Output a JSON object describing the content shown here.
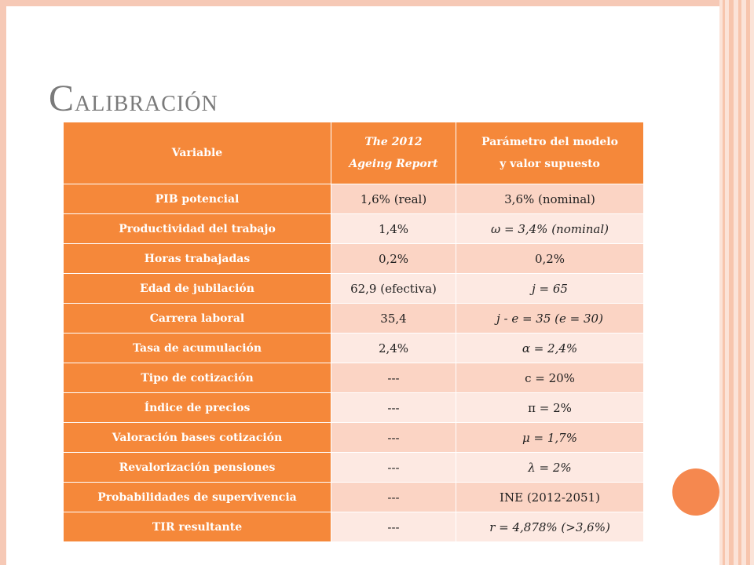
{
  "title": {
    "first": "C",
    "rest": "alibración"
  },
  "table": {
    "headers": {
      "variable": "Variable",
      "report_line1": "The 2012",
      "report_line2": "Ageing Report",
      "param_line1": "Parámetro del modelo",
      "param_line2": "y valor supuesto"
    },
    "rows": [
      {
        "variable": "PIB potencial",
        "report": "1,6% (real)",
        "param": "3,6% (nominal)"
      },
      {
        "variable": "Productividad del trabajo",
        "report": "1,4%",
        "param": "ω = 3,4% (nominal)"
      },
      {
        "variable": "Horas trabajadas",
        "report": "0,2%",
        "param": "0,2%"
      },
      {
        "variable": "Edad de jubilación",
        "report": "62,9 (efectiva)",
        "param": "j = 65"
      },
      {
        "variable": "Carrera laboral",
        "report": "35,4",
        "param": "j - e = 35 (e = 30)"
      },
      {
        "variable": "Tasa de acumulación",
        "report": "2,4%",
        "param": "α = 2,4%"
      },
      {
        "variable": "Tipo de cotización",
        "report": "---",
        "param": "c = 20%"
      },
      {
        "variable": "Índice de precios",
        "report": "---",
        "param": "π = 2%"
      },
      {
        "variable": "Valoración bases cotización",
        "report": "---",
        "param": "μ = 1,7%"
      },
      {
        "variable": "Revalorización pensiones",
        "report": "---",
        "param": "λ = 2%"
      },
      {
        "variable": "Probabilidades de supervivencia",
        "report": "---",
        "param": "INE (2012-2051)"
      },
      {
        "variable": "TIR resultante",
        "report": "---",
        "param": "r = 4,878% (>3,6%)"
      }
    ]
  },
  "colors": {
    "header_orange": "#f5883a",
    "row_dark": "#fbd4c4",
    "row_light": "#fde9e2",
    "accent_dot": "#f5884f"
  }
}
